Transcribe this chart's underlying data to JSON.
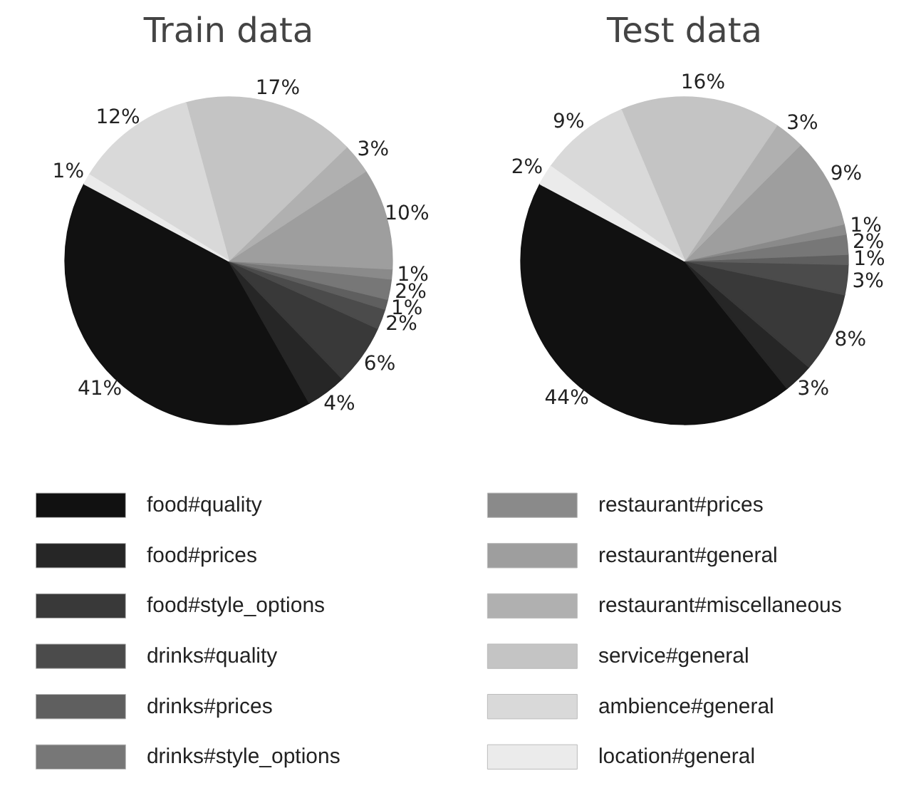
{
  "chart_data": [
    {
      "type": "pie",
      "title": "Train data",
      "legend": "bottom",
      "categories": [
        "food#quality",
        "food#prices",
        "food#style_options",
        "drinks#quality",
        "drinks#prices",
        "drinks#style_options",
        "restaurant#prices",
        "restaurant#general",
        "restaurant#miscellaneous",
        "service#general",
        "ambience#general",
        "location#general"
      ],
      "values": [
        41,
        4,
        6,
        2,
        1,
        2,
        1,
        10,
        3,
        17,
        12,
        1
      ],
      "value_labels": [
        "41%",
        "4%",
        "6%",
        "2%",
        "1%",
        "2%",
        "1%",
        "10%",
        "3%",
        "17%",
        "12%",
        "1%"
      ],
      "colors": [
        "#111111",
        "#262626",
        "#393939",
        "#4b4b4b",
        "#5f5f5f",
        "#777777",
        "#8a8a8a",
        "#9e9e9e",
        "#b0b0b0",
        "#c4c4c4",
        "#d9d9d9",
        "#ebebeb"
      ]
    },
    {
      "type": "pie",
      "title": "Test data",
      "categories": [
        null,
        null,
        null,
        null,
        null,
        null,
        null,
        null,
        null,
        null,
        null,
        null
      ],
      "values": [
        44,
        3,
        8,
        3,
        1,
        2,
        1,
        9,
        3,
        16,
        9,
        2
      ],
      "value_labels": [
        "44%",
        "3%",
        "8%",
        "3%",
        "1%",
        "2%",
        "1%",
        "9%",
        "3%",
        "16%",
        "9%",
        "2%"
      ],
      "colors": [
        "#111111",
        "#262626",
        "#393939",
        "#4b4b4b",
        "#5f5f5f",
        "#777777",
        "#8a8a8a",
        "#9e9e9e",
        "#b0b0b0",
        "#c4c4c4",
        "#d9d9d9",
        "#ebebeb"
      ]
    }
  ]
}
